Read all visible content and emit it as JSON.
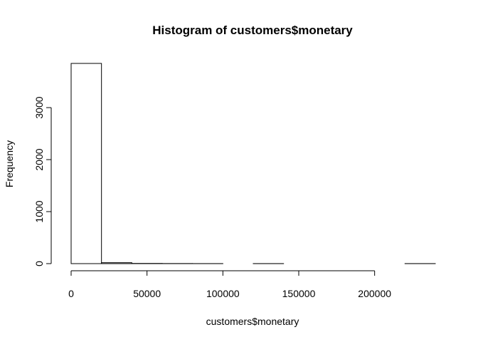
{
  "chart_data": {
    "type": "bar",
    "subtype": "histogram",
    "title": "Histogram of customers$monetary",
    "xlabel": "customers$monetary",
    "ylabel": "Frequency",
    "bin_width": 20000,
    "bins": [
      {
        "start": 0,
        "end": 20000,
        "count": 3850
      },
      {
        "start": 20000,
        "end": 40000,
        "count": 18
      },
      {
        "start": 40000,
        "end": 60000,
        "count": 4
      },
      {
        "start": 60000,
        "end": 80000,
        "count": 2
      },
      {
        "start": 80000,
        "end": 100000,
        "count": 1
      },
      {
        "start": 100000,
        "end": 120000,
        "count": 0
      },
      {
        "start": 120000,
        "end": 140000,
        "count": 1
      },
      {
        "start": 140000,
        "end": 160000,
        "count": 0
      },
      {
        "start": 160000,
        "end": 180000,
        "count": 0
      },
      {
        "start": 180000,
        "end": 200000,
        "count": 0
      },
      {
        "start": 200000,
        "end": 220000,
        "count": 0
      },
      {
        "start": 220000,
        "end": 240000,
        "count": 1
      }
    ],
    "x_ticks": [
      0,
      50000,
      100000,
      150000,
      200000
    ],
    "x_tick_labels": [
      "0",
      "50000",
      "100000",
      "150000",
      "200000"
    ],
    "y_ticks": [
      0,
      1000,
      2000,
      3000
    ],
    "y_tick_labels": [
      "0",
      "1000",
      "2000",
      "3000"
    ],
    "xlim": [
      0,
      240000
    ],
    "ylim": [
      0,
      3850
    ],
    "grid": false,
    "bar_fill": "#ffffff",
    "bar_stroke": "#000000"
  }
}
